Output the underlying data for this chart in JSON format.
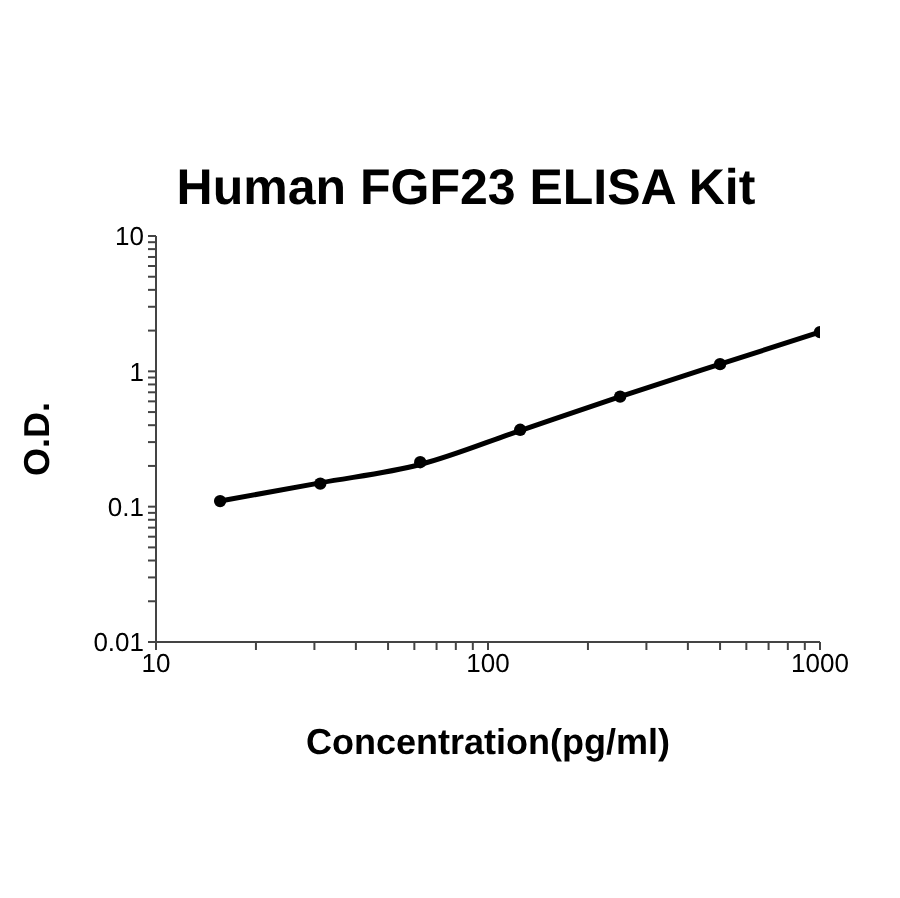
{
  "chart_data": {
    "type": "scatter",
    "title": "Human FGF23 ELISA Kit",
    "xlabel": "Concentration(pg/ml)",
    "ylabel": "O.D.",
    "log": "xy",
    "grid": false,
    "legend": false,
    "x": [
      15.6,
      31.25,
      62.5,
      125,
      250,
      500,
      1000
    ],
    "series": [
      {
        "color": "#000000",
        "marker": "circle",
        "values": [
          0.11,
          0.148,
          0.213,
          0.37,
          0.65,
          1.13,
          1.95
        ]
      },
      {
        "type": "line",
        "color": "#000000",
        "marker": "none",
        "line_style": "solid",
        "x": [
          15.6,
          31.25,
          62.5,
          125,
          250,
          500,
          1000
        ],
        "values": [
          0.11,
          0.15,
          0.205,
          0.365,
          0.65,
          1.13,
          1.95
        ]
      }
    ],
    "xlim": [
      10,
      1000
    ],
    "ylim": [
      0.01,
      10
    ],
    "xticks": [
      10,
      {
        "value": 20,
        "label": null
      },
      {
        "value": 30,
        "label": null
      },
      {
        "value": 40,
        "label": null
      },
      {
        "value": 50,
        "label": null
      },
      {
        "value": 60,
        "label": null
      },
      {
        "value": 70,
        "label": null
      },
      {
        "value": 80,
        "label": null
      },
      {
        "value": 90,
        "label": null
      },
      100,
      {
        "value": 200,
        "label": null
      },
      {
        "value": 300,
        "label": null
      },
      {
        "value": 400,
        "label": null
      },
      {
        "value": 500,
        "label": null
      },
      {
        "value": 600,
        "label": null
      },
      {
        "value": 700,
        "label": null
      },
      {
        "value": 800,
        "label": null
      },
      {
        "value": 900,
        "label": null
      },
      1000
    ],
    "yticks": [
      0.01,
      {
        "value": 0.02,
        "label": null
      },
      {
        "value": 0.03,
        "label": null
      },
      {
        "value": 0.04,
        "label": null
      },
      {
        "value": 0.05,
        "label": null
      },
      {
        "value": 0.06,
        "label": null
      },
      {
        "value": 0.07,
        "label": null
      },
      {
        "value": 0.08,
        "label": null
      },
      {
        "value": 0.09,
        "label": null
      },
      0.1,
      {
        "value": 0.2,
        "label": null
      },
      {
        "value": 0.3,
        "label": null
      },
      {
        "value": 0.4,
        "label": null
      },
      {
        "value": 0.5,
        "label": null
      },
      {
        "value": 0.6,
        "label": null
      },
      {
        "value": 0.7,
        "label": null
      },
      {
        "value": 0.8,
        "label": null
      },
      {
        "value": 0.9,
        "label": null
      },
      1,
      {
        "value": 2,
        "label": null
      },
      {
        "value": 3,
        "label": null
      },
      {
        "value": 4,
        "label": null
      },
      {
        "value": 5,
        "label": null
      },
      {
        "value": 6,
        "label": null
      },
      {
        "value": 7,
        "label": null
      },
      {
        "value": 8,
        "label": null
      },
      {
        "value": 9,
        "label": null
      },
      10
    ]
  }
}
